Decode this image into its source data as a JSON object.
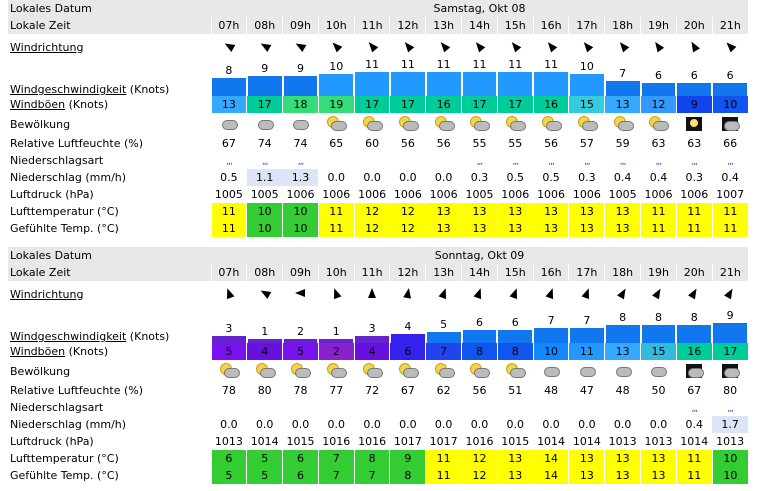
{
  "labels": {
    "local_date": "Lokales Datum",
    "local_time": "Lokale Zeit",
    "wind_dir": "Windrichtung",
    "wind_speed": "Windgeschwindigkeit",
    "wind_speed_unit": " (Knots)",
    "gusts": "Windböen",
    "gusts_unit": " (Knots)",
    "cloud": "Bewölkung",
    "humidity": "Relative Luftfeuchte (%)",
    "precip_type": "Niederschlagsart",
    "precip": "Niederschlag (mm/h)",
    "pressure": "Luftdruck (hPa)",
    "air_temp": "Lufttemperatur (°C)",
    "feels_temp": "Gefühlte Temp. (°C)"
  },
  "days": [
    {
      "date": "Samstag, Okt 08",
      "hours": [
        "07h",
        "08h",
        "09h",
        "10h",
        "11h",
        "12h",
        "13h",
        "14h",
        "15h",
        "16h",
        "17h",
        "18h",
        "19h",
        "20h",
        "21h"
      ],
      "wind_dir_deg": [
        300,
        300,
        300,
        315,
        320,
        320,
        320,
        320,
        320,
        320,
        320,
        320,
        325,
        330,
        315
      ],
      "wind_speed": [
        8,
        9,
        9,
        10,
        11,
        11,
        11,
        11,
        11,
        11,
        10,
        7,
        6,
        6,
        6
      ],
      "gusts": [
        13,
        17,
        18,
        19,
        17,
        17,
        16,
        17,
        17,
        16,
        15,
        13,
        12,
        9,
        10
      ],
      "gust_colors": [
        "#33aaff",
        "#00cc99",
        "#33dd77",
        "#33dd77",
        "#00cc99",
        "#00cc99",
        "#00cc99",
        "#00cc99",
        "#00cc99",
        "#00cc99",
        "#33ccdd",
        "#33aaff",
        "#3399ff",
        "#1144ee",
        "#1155ee"
      ],
      "cloud_icons": [
        "cloud",
        "cloud",
        "cloud",
        "sun-cloud",
        "sun-cloud",
        "sun-cloud",
        "sun-cloud",
        "sun-cloud",
        "sun-cloud",
        "sun-cloud",
        "sun-cloud",
        "sun-cloud",
        "sun-cloud",
        "moon",
        "moon-cloud"
      ],
      "humidity": [
        "67",
        "74",
        "74",
        "65",
        "60",
        "56",
        "56",
        "55",
        "55",
        "56",
        "57",
        "59",
        "63",
        "63",
        "66"
      ],
      "precip_type": [
        true,
        true,
        true,
        false,
        false,
        false,
        false,
        true,
        true,
        true,
        true,
        true,
        true,
        true,
        true
      ],
      "precip": [
        "0.5",
        "1.1",
        "1.3",
        "0.0",
        "0.0",
        "0.0",
        "0.0",
        "0.3",
        "0.5",
        "0.5",
        "0.3",
        "0.4",
        "0.4",
        "0.3",
        "0.4"
      ],
      "precip_highlight": [
        false,
        true,
        true,
        false,
        false,
        false,
        false,
        false,
        false,
        false,
        false,
        false,
        false,
        false,
        false
      ],
      "pressure": [
        "1005",
        "1005",
        "1006",
        "1006",
        "1006",
        "1006",
        "1006",
        "1005",
        "1006",
        "1006",
        "1006",
        "1005",
        "1006",
        "1006",
        "1007"
      ],
      "air_temp": [
        "11",
        "10",
        "10",
        "11",
        "12",
        "12",
        "13",
        "13",
        "13",
        "13",
        "13",
        "13",
        "11",
        "11",
        "11"
      ],
      "feels_temp": [
        "11",
        "10",
        "10",
        "11",
        "12",
        "12",
        "13",
        "13",
        "13",
        "13",
        "13",
        "13",
        "11",
        "11",
        "11"
      ]
    },
    {
      "date": "Sonntag, Okt 09",
      "hours": [
        "07h",
        "08h",
        "09h",
        "10h",
        "11h",
        "12h",
        "13h",
        "14h",
        "15h",
        "16h",
        "17h",
        "18h",
        "19h",
        "20h",
        "21h"
      ],
      "wind_dir_deg": [
        340,
        300,
        270,
        340,
        0,
        10,
        20,
        20,
        20,
        20,
        20,
        30,
        30,
        30,
        30
      ],
      "wind_speed": [
        3,
        1,
        2,
        1,
        3,
        4,
        5,
        6,
        6,
        7,
        7,
        8,
        8,
        8,
        9
      ],
      "gusts": [
        5,
        4,
        5,
        2,
        4,
        6,
        7,
        8,
        8,
        10,
        11,
        13,
        15,
        16,
        17
      ],
      "gust_colors": [
        "#7711ee",
        "#6611dd",
        "#7711ee",
        "#8822cc",
        "#6611dd",
        "#3322ee",
        "#2244ee",
        "#1155ee",
        "#1155ee",
        "#1188ff",
        "#2299ff",
        "#33aaff",
        "#33bbdd",
        "#00cc99",
        "#00cc99"
      ],
      "cloud_icons": [
        "sun-cloud",
        "sun-cloud",
        "sun-cloud",
        "sun-cloud",
        "sun-cloud",
        "sun-cloud",
        "sun-cloud",
        "sun-cloud",
        "sun-cloud",
        "cloud",
        "cloud",
        "cloud",
        "cloud",
        "moon-cloud",
        "moon-cloud"
      ],
      "humidity": [
        "78",
        "80",
        "78",
        "77",
        "72",
        "67",
        "62",
        "56",
        "51",
        "48",
        "47",
        "48",
        "50",
        "67",
        "80"
      ],
      "precip_type": [
        false,
        false,
        false,
        false,
        false,
        false,
        false,
        false,
        false,
        false,
        false,
        false,
        false,
        true,
        true
      ],
      "precip": [
        "0.0",
        "0.0",
        "0.0",
        "0.0",
        "0.0",
        "0.0",
        "0.0",
        "0.0",
        "0.0",
        "0.0",
        "0.0",
        "0.0",
        "0.0",
        "0.4",
        "1.7"
      ],
      "precip_highlight": [
        false,
        false,
        false,
        false,
        false,
        false,
        false,
        false,
        false,
        false,
        false,
        false,
        false,
        false,
        true
      ],
      "pressure": [
        "1013",
        "1014",
        "1015",
        "1016",
        "1016",
        "1017",
        "1017",
        "1016",
        "1015",
        "1014",
        "1014",
        "1013",
        "1013",
        "1014",
        "1013"
      ],
      "air_temp": [
        "6",
        "5",
        "6",
        "7",
        "8",
        "9",
        "11",
        "12",
        "13",
        "14",
        "13",
        "13",
        "13",
        "11",
        "10"
      ],
      "feels_temp": [
        "5",
        "5",
        "6",
        "7",
        "7",
        "8",
        "11",
        "12",
        "13",
        "14",
        "13",
        "13",
        "13",
        "11",
        "10"
      ]
    }
  ],
  "colors": {
    "header_bg": "#e8e8e8",
    "speed_bar_strong": "#1177ee",
    "speed_bar_light": "#2299ff",
    "speed_bar_weak": "#6622cc",
    "temp_green": "#33cc33",
    "temp_yellow": "#ffff00",
    "temp_lightyellow": "#ffff66",
    "precip_highlight_bg": "#dde4f5"
  }
}
